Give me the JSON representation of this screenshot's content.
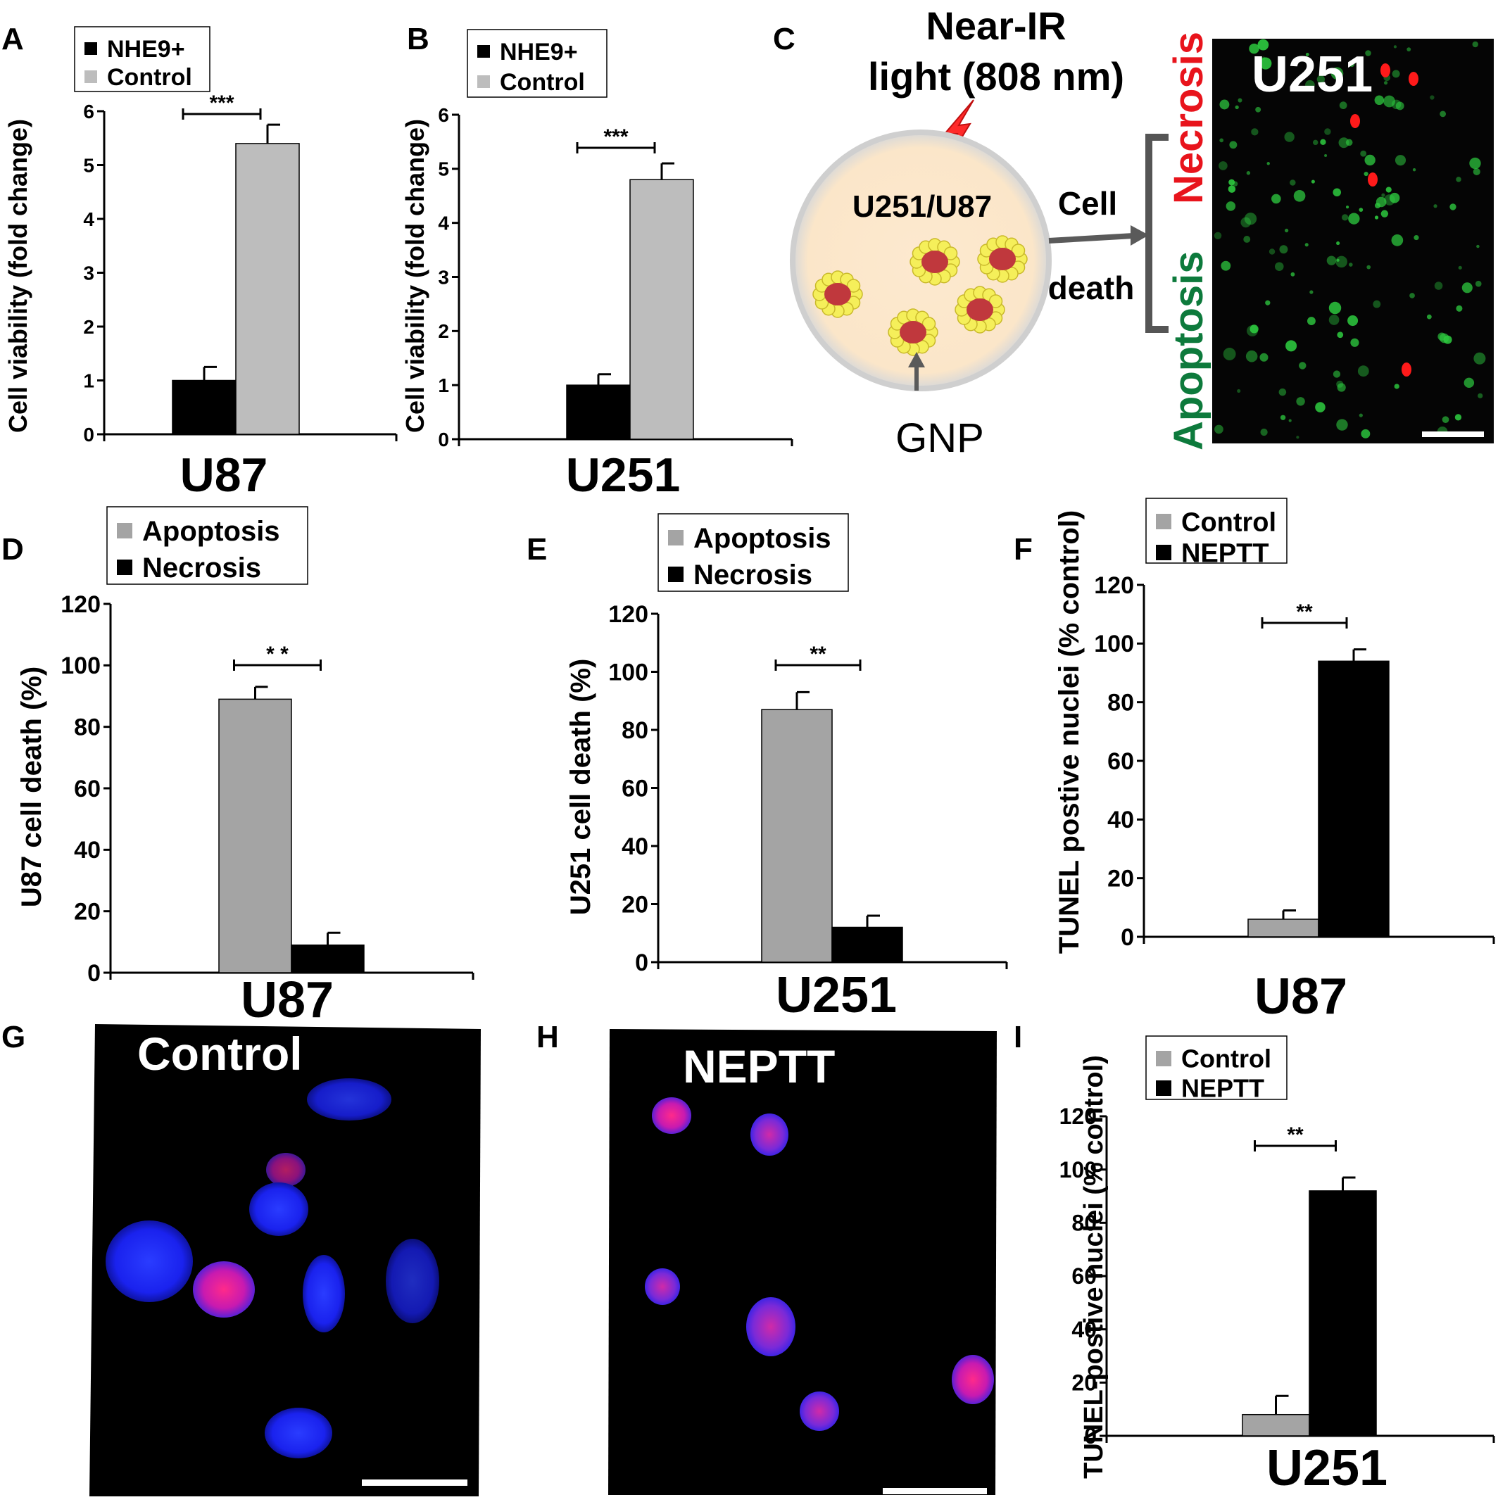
{
  "panel_letters": [
    "A",
    "B",
    "C",
    "D",
    "E",
    "F",
    "G",
    "H",
    "I"
  ],
  "colors": {
    "black_bar": "#000000",
    "light_gray_bar": "#bdbdbd",
    "mid_gray_bar": "#a4a4a4",
    "necrosis_red": "#e8141c",
    "apoptosis_green": "#0d7a3c",
    "dish_fill": "#fbe8cf",
    "nucleus_blue": "#1a22ff",
    "nucleus_pink": "#e0208f"
  },
  "diagram_c": {
    "light_label_line1": "Near-IR",
    "light_label_line2": "light (808 nm)",
    "dish_label": "U251/U87",
    "gnp_label": "GNP",
    "cell_label": "Cell",
    "death_label": "death",
    "necrosis_label": "Necrosis",
    "apoptosis_label": "Apoptosis",
    "image_label": "U251"
  },
  "image_g_label": "Control",
  "image_h_label": "NEPTT",
  "chart_data": [
    {
      "id": "A",
      "type": "bar",
      "categories": [
        "U87"
      ],
      "series": [
        {
          "name": "NHE9+",
          "values": [
            1.0
          ],
          "errors": [
            0.25
          ],
          "color": "#000000"
        },
        {
          "name": "Control",
          "values": [
            5.4
          ],
          "errors": [
            0.35
          ],
          "color": "#bdbdbd"
        }
      ],
      "ylabel": "Cell viability (fold change)",
      "xlabel": "U87",
      "ylim": [
        0,
        6
      ],
      "yticks": [
        "0",
        "1",
        "2",
        "3",
        "4",
        "5",
        "6"
      ],
      "significance": "***"
    },
    {
      "id": "B",
      "type": "bar",
      "categories": [
        "U251"
      ],
      "series": [
        {
          "name": "NHE9+",
          "values": [
            1.0
          ],
          "errors": [
            0.2
          ],
          "color": "#000000"
        },
        {
          "name": "Control",
          "values": [
            4.8
          ],
          "errors": [
            0.3
          ],
          "color": "#bdbdbd"
        }
      ],
      "ylabel": "Cell viability (fold change)",
      "xlabel": "U251",
      "ylim": [
        0,
        6
      ],
      "yticks": [
        "0",
        "1",
        "2",
        "3",
        "4",
        "5",
        "6"
      ],
      "significance": "***"
    },
    {
      "id": "D",
      "type": "bar",
      "categories": [
        "U87"
      ],
      "series": [
        {
          "name": "Apoptosis",
          "values": [
            89
          ],
          "errors": [
            4
          ],
          "color": "#a4a4a4"
        },
        {
          "name": "Necrosis",
          "values": [
            9
          ],
          "errors": [
            4
          ],
          "color": "#000000"
        }
      ],
      "ylabel": "U87 cell death (%)",
      "xlabel": "U87",
      "ylim": [
        0,
        120
      ],
      "yticks": [
        "0",
        "20",
        "40",
        "60",
        "80",
        "100",
        "120"
      ],
      "significance": "* *"
    },
    {
      "id": "E",
      "type": "bar",
      "categories": [
        "U251"
      ],
      "series": [
        {
          "name": "Apoptosis",
          "values": [
            87
          ],
          "errors": [
            6
          ],
          "color": "#a4a4a4"
        },
        {
          "name": "Necrosis",
          "values": [
            12
          ],
          "errors": [
            4
          ],
          "color": "#000000"
        }
      ],
      "ylabel": "U251 cell death (%)",
      "xlabel": "U251",
      "ylim": [
        0,
        120
      ],
      "yticks": [
        "0",
        "20",
        "40",
        "60",
        "80",
        "100",
        "120"
      ],
      "significance": "**"
    },
    {
      "id": "F",
      "type": "bar",
      "categories": [
        "U87"
      ],
      "series": [
        {
          "name": "Control",
          "values": [
            6
          ],
          "errors": [
            3
          ],
          "color": "#a4a4a4"
        },
        {
          "name": "NEPTT",
          "values": [
            94
          ],
          "errors": [
            4
          ],
          "color": "#000000"
        }
      ],
      "ylabel": "TUNEL  postive nuclei (% control)",
      "xlabel": "U87",
      "ylim": [
        0,
        120
      ],
      "yticks": [
        "0",
        "20",
        "40",
        "60",
        "80",
        "100",
        "120"
      ],
      "significance": "**"
    },
    {
      "id": "I",
      "type": "bar",
      "categories": [
        "U251"
      ],
      "series": [
        {
          "name": "Control",
          "values": [
            8
          ],
          "errors": [
            7
          ],
          "color": "#a4a4a4"
        },
        {
          "name": "NEPTT",
          "values": [
            92
          ],
          "errors": [
            5
          ],
          "color": "#000000"
        }
      ],
      "ylabel": "TUNEL-postive nuclei (% control)",
      "xlabel": "U251",
      "ylim": [
        0,
        120
      ],
      "yticks": [
        "0",
        "20",
        "40",
        "60",
        "80",
        "100",
        "120"
      ],
      "significance": "**"
    }
  ]
}
